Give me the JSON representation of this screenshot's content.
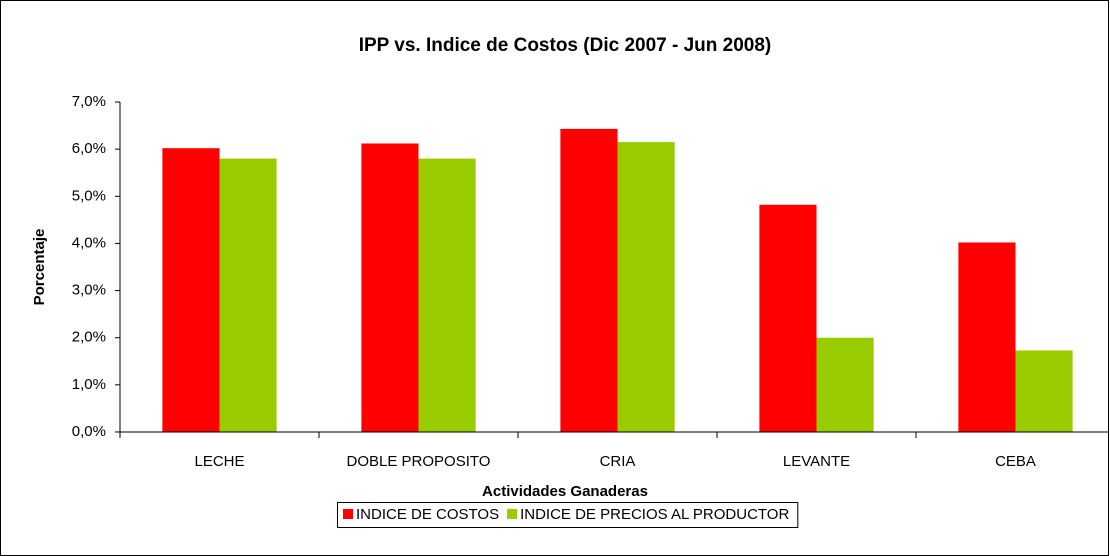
{
  "chart_data": {
    "type": "bar",
    "title": "IPP vs. Indice de Costos (Dic 2007 - Jun 2008)",
    "x_label": "Actividades Ganaderas",
    "y_label": "Porcentaje",
    "categories": [
      "LECHE",
      "DOBLE PROPOSITO",
      "CRIA",
      "LEVANTE",
      "CEBA"
    ],
    "series": [
      {
        "name": "INDICE DE COSTOS",
        "color": "#ff0000",
        "values": [
          6.02,
          6.12,
          6.43,
          4.82,
          4.02
        ]
      },
      {
        "name": "INDICE DE PRECIOS AL PRODUCTOR",
        "color": "#99cc00",
        "values": [
          5.8,
          5.8,
          6.15,
          2.0,
          1.73
        ]
      }
    ],
    "ylim": [
      0,
      7
    ],
    "yticks": [
      {
        "value": 0,
        "label": "0,0%"
      },
      {
        "value": 1,
        "label": "1,0%"
      },
      {
        "value": 2,
        "label": "2,0%"
      },
      {
        "value": 3,
        "label": "3,0%"
      },
      {
        "value": 4,
        "label": "4,0%"
      },
      {
        "value": 5,
        "label": "5,0%"
      },
      {
        "value": 6,
        "label": "6,0%"
      },
      {
        "value": 7,
        "label": "7,0%"
      }
    ],
    "legend": "bottom"
  }
}
